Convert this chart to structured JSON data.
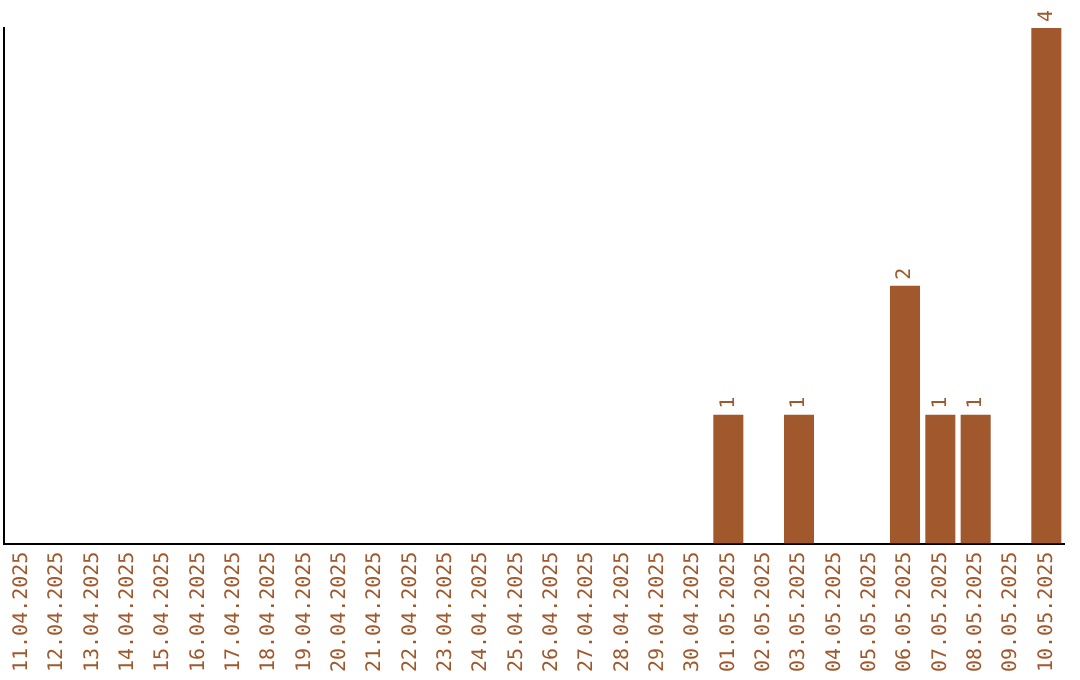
{
  "chart_data": {
    "type": "bar",
    "categories": [
      "11.04.2025",
      "12.04.2025",
      "13.04.2025",
      "14.04.2025",
      "15.04.2025",
      "16.04.2025",
      "17.04.2025",
      "18.04.2025",
      "19.04.2025",
      "20.04.2025",
      "21.04.2025",
      "22.04.2025",
      "23.04.2025",
      "24.04.2025",
      "25.04.2025",
      "26.04.2025",
      "27.04.2025",
      "28.04.2025",
      "29.04.2025",
      "30.04.2025",
      "01.05.2025",
      "02.05.2025",
      "03.05.2025",
      "04.05.2025",
      "05.05.2025",
      "06.05.2025",
      "07.05.2025",
      "08.05.2025",
      "09.05.2025",
      "10.05.2025"
    ],
    "values": [
      null,
      null,
      null,
      null,
      null,
      null,
      null,
      null,
      null,
      null,
      null,
      null,
      null,
      null,
      null,
      null,
      null,
      null,
      null,
      null,
      1,
      null,
      1,
      null,
      null,
      2,
      1,
      1,
      null,
      4
    ],
    "color": "#a0582c",
    "data_labels": true,
    "tick_labels": "x",
    "grid": false,
    "legend": false
  }
}
